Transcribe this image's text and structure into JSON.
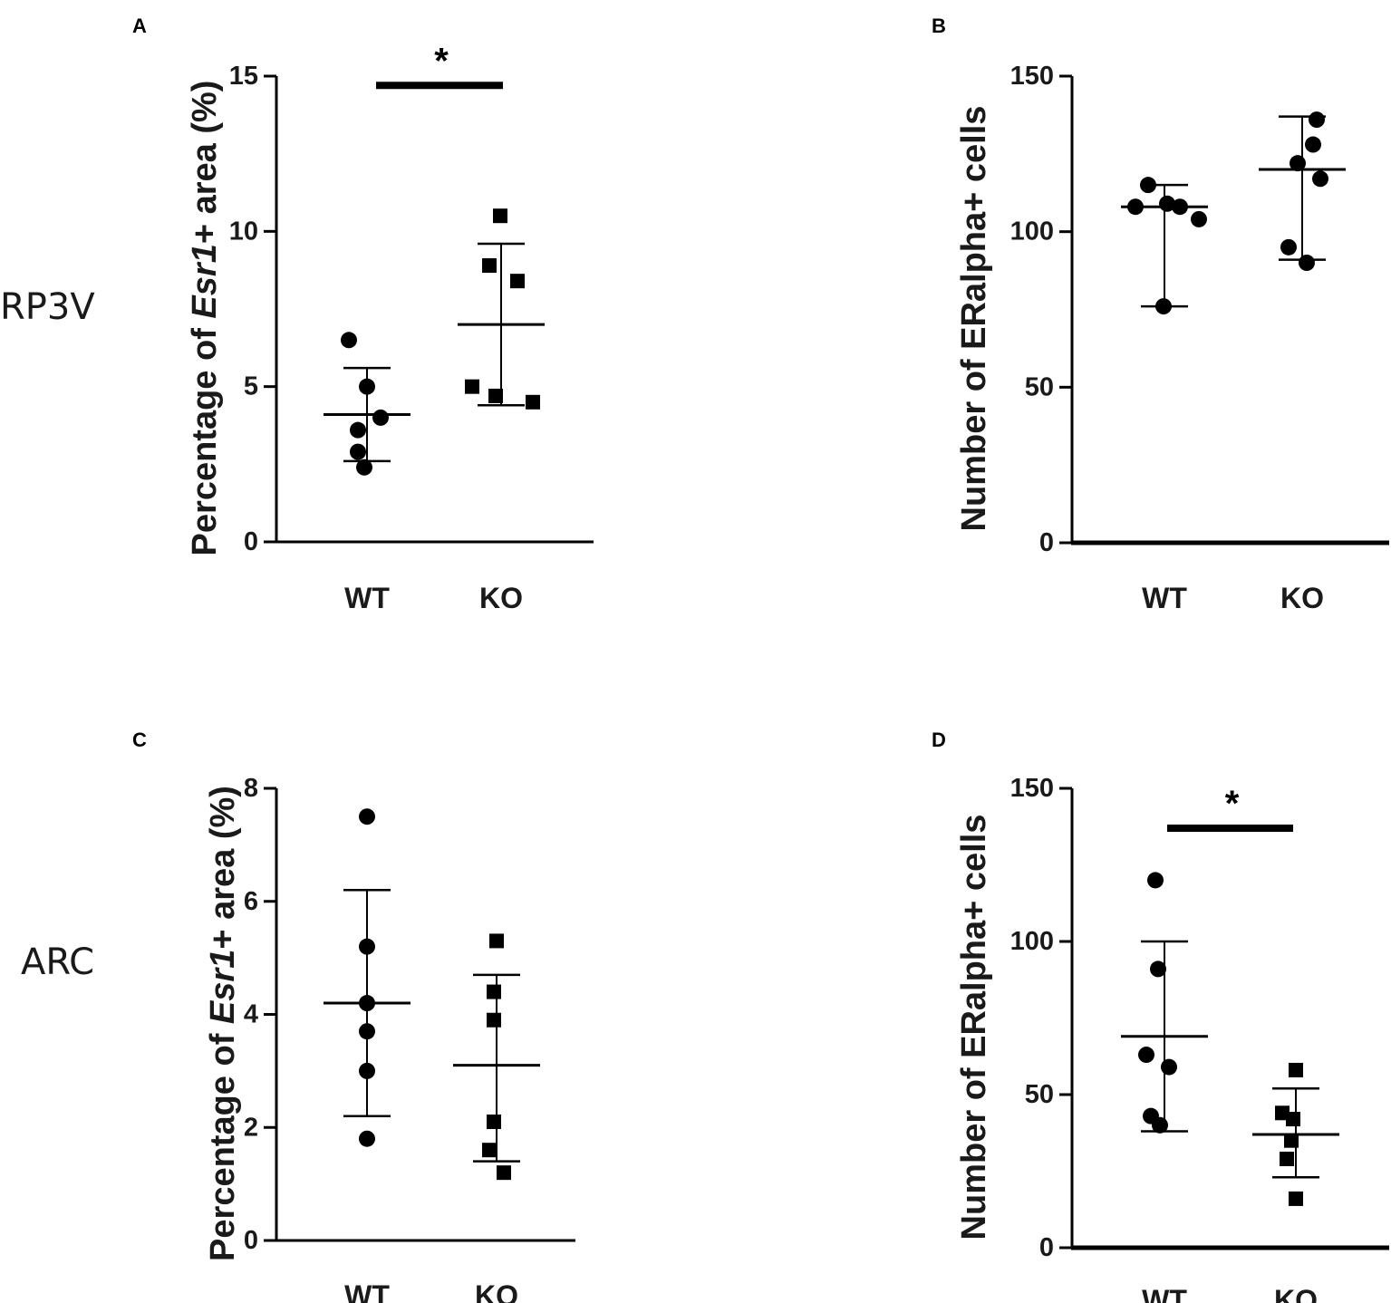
{
  "row_labels": {
    "top": "RP3V",
    "bottom": "ARC"
  },
  "chart_data": [
    {
      "panel": "A",
      "type": "scatter",
      "categories": [
        "WT",
        "KO"
      ],
      "ylabel_parts": [
        "Percentage of ",
        "Esr1",
        "+ area (%)"
      ],
      "ylim": [
        0,
        15
      ],
      "yticks": [
        0,
        5,
        10,
        15
      ],
      "series": [
        {
          "name": "WT",
          "marker": "circle",
          "values": [
            6.5,
            5.0,
            4.0,
            3.6,
            2.9,
            2.4
          ],
          "mean": 4.1,
          "sd_low": 2.6,
          "sd_high": 5.6
        },
        {
          "name": "KO",
          "marker": "square",
          "values": [
            10.5,
            8.9,
            8.4,
            5.0,
            4.7,
            4.5
          ],
          "mean": 7.0,
          "sd_low": 4.4,
          "sd_high": 9.6
        }
      ],
      "significance": {
        "label": "*",
        "between": [
          "WT",
          "KO"
        ],
        "y": 14.7
      }
    },
    {
      "panel": "B",
      "type": "scatter",
      "categories": [
        "WT",
        "KO"
      ],
      "ylabel_parts": [
        "Number of ERalpha+ cells"
      ],
      "ylim": [
        0,
        150
      ],
      "yticks": [
        0,
        50,
        100,
        150
      ],
      "series": [
        {
          "name": "WT",
          "marker": "circle",
          "values": [
            115,
            109,
            108,
            108,
            104,
            76
          ],
          "mean": 108,
          "sd_low": 76,
          "sd_high": 115
        },
        {
          "name": "KO",
          "marker": "circle",
          "values": [
            136,
            128,
            122,
            117,
            95,
            90
          ],
          "mean": 120,
          "sd_low": 91,
          "sd_high": 137
        },
        {
          "name": "",
          "marker": "none",
          "values": []
        }
      ],
      "significance": null
    },
    {
      "panel": "C",
      "type": "scatter",
      "categories": [
        "WT",
        "KO"
      ],
      "ylabel_parts": [
        "Percentage of ",
        "Esr1",
        "+ area (%)"
      ],
      "ylim": [
        0,
        8
      ],
      "yticks": [
        0,
        2,
        4,
        6,
        8
      ],
      "series": [
        {
          "name": "WT",
          "marker": "circle",
          "values": [
            7.5,
            5.2,
            4.2,
            3.7,
            3.0,
            1.8
          ],
          "mean": 4.2,
          "sd_low": 2.2,
          "sd_high": 6.2
        },
        {
          "name": "KO",
          "marker": "square",
          "values": [
            5.3,
            4.4,
            3.9,
            2.1,
            1.6,
            1.2
          ],
          "mean": 3.1,
          "sd_low": 1.4,
          "sd_high": 4.7
        }
      ],
      "significance": null
    },
    {
      "panel": "D",
      "type": "scatter",
      "categories": [
        "WT",
        "KO"
      ],
      "ylabel_parts": [
        "Number of ERalpha+ cells"
      ],
      "ylim": [
        0,
        150
      ],
      "yticks": [
        0,
        50,
        100,
        150
      ],
      "series": [
        {
          "name": "WT",
          "marker": "circle",
          "values": [
            120,
            91,
            63,
            59,
            43,
            40
          ],
          "mean": 69,
          "sd_low": 38,
          "sd_high": 100
        },
        {
          "name": "KO",
          "marker": "square",
          "values": [
            58,
            44,
            42,
            35,
            29,
            16
          ],
          "mean": 37,
          "sd_low": 23,
          "sd_high": 52
        }
      ],
      "significance": {
        "label": "*",
        "between": [
          "WT",
          "KO"
        ],
        "y": 137
      }
    }
  ]
}
